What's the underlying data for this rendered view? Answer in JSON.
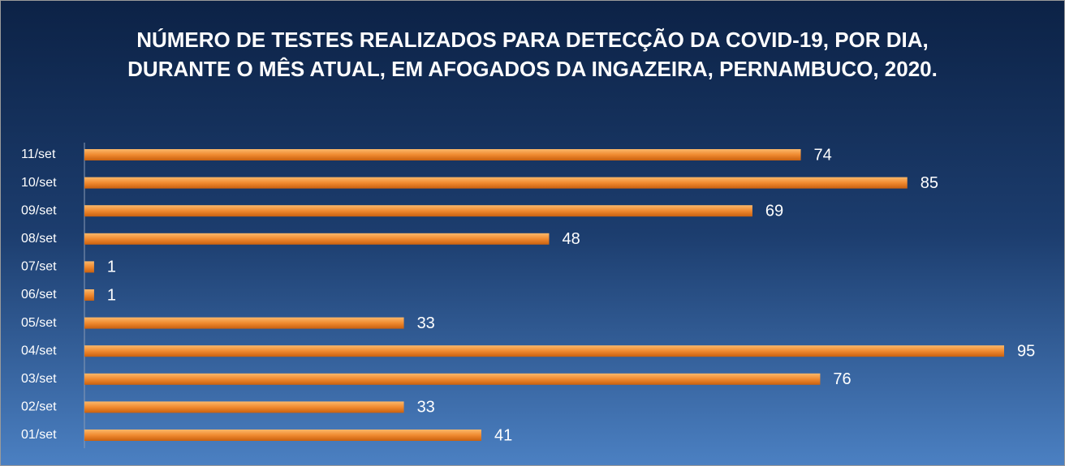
{
  "chart_data": {
    "type": "bar",
    "orientation": "horizontal",
    "title": "NÚMERO DE TESTES REALIZADOS PARA DETECÇÃO DA COVID-19, POR DIA, DURANTE O MÊS ATUAL, EM AFOGADOS DA INGAZEIRA, PERNAMBUCO, 2020.",
    "categories": [
      "01/set",
      "02/set",
      "03/set",
      "04/set",
      "05/set",
      "06/set",
      "07/set",
      "08/set",
      "09/set",
      "10/set",
      "11/set"
    ],
    "values": [
      41,
      33,
      76,
      95,
      33,
      1,
      1,
      48,
      69,
      85,
      74
    ],
    "color": "#f08a30"
  }
}
